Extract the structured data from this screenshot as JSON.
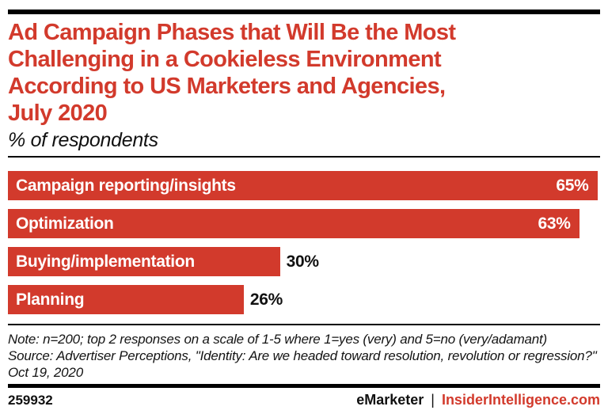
{
  "colors": {
    "red": "#d23a2c",
    "ink": "#000000",
    "bar_label_text": "#ffffff",
    "outside_value_text": "#111111"
  },
  "header": {
    "title": "Ad Campaign Phases that Will Be the Most Challenging in a Cookieless Environment According to US Marketers and Agencies, July 2020",
    "title_lines": [
      "Ad Campaign Phases that Will Be the Most",
      "Challenging in a Cookieless Environment",
      "According to US Marketers and Agencies,",
      "July 2020"
    ],
    "subtitle": "% of respondents"
  },
  "chart_data": {
    "type": "bar",
    "orientation": "horizontal",
    "title": "Ad Campaign Phases that Will Be the Most Challenging in a Cookieless Environment According to US Marketers and Agencies, July 2020",
    "subtitle": "% of respondents",
    "categories": [
      "Campaign reporting/insights",
      "Optimization",
      "Buying/implementation",
      "Planning"
    ],
    "values": [
      65,
      63,
      30,
      26
    ],
    "value_labels": [
      "65%",
      "63%",
      "30%",
      "26%"
    ],
    "value_label_position": [
      "inside-right",
      "inside-right",
      "outside-right",
      "outside-right"
    ],
    "unit": "% of respondents",
    "xlim": [
      0,
      65.3
    ],
    "grid": false,
    "legend": false,
    "bar_color": "#d23a2c"
  },
  "footnote": {
    "note": "Note: n=200; top 2 responses on a scale of 1-5 where 1=yes (very) and 5=no (very/adamant)",
    "source": "Source: Advertiser Perceptions, \"Identity: Are we headed toward resolution, revolution or regression?\" Oct 19, 2020"
  },
  "footer": {
    "chart_id": "259932",
    "brand": "eMarketer",
    "separator": "|",
    "site": "InsiderIntelligence.com"
  }
}
